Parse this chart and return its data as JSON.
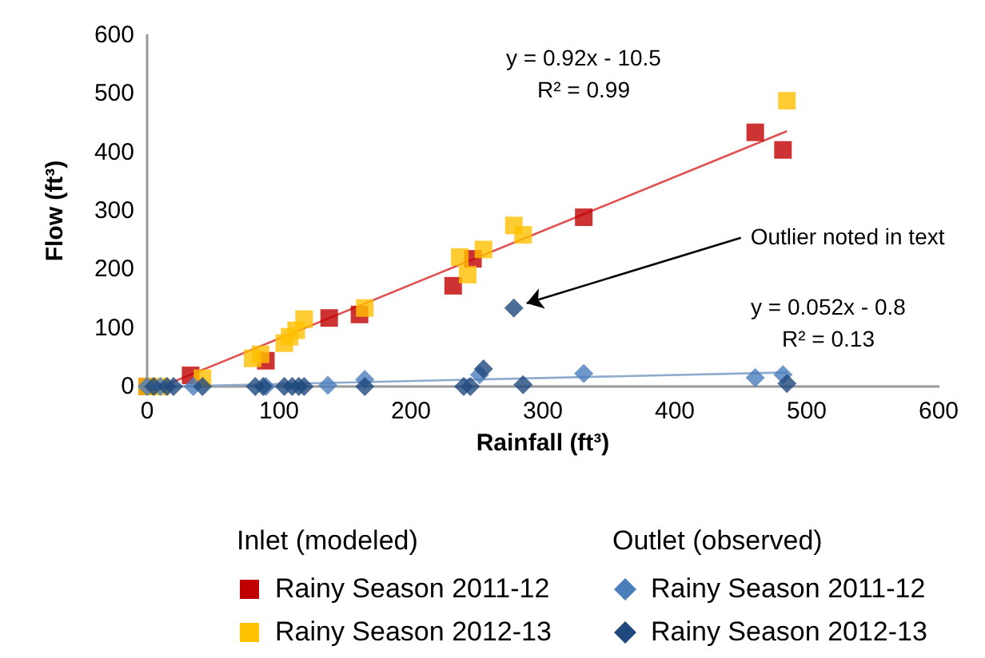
{
  "chart_data": {
    "type": "scatter",
    "xlabel": "Rainfall (ft³)",
    "ylabel": "Flow (ft³)",
    "xlim": [
      0,
      600
    ],
    "ylim": [
      0,
      600
    ],
    "xticks": [
      0,
      100,
      200,
      300,
      400,
      500,
      600
    ],
    "yticks": [
      0,
      100,
      200,
      300,
      400,
      500,
      600
    ],
    "grid": false,
    "legend": "bottom",
    "series": [
      {
        "name": "Rainy Season 2011-12",
        "color": "#c00000",
        "marker": "square",
        "x": [
          0,
          12,
          33,
          90,
          138,
          161,
          232,
          247,
          331,
          461,
          482
        ],
        "values": [
          0,
          null,
          19,
          44,
          117,
          123,
          172,
          218,
          289,
          434,
          404
        ]
      },
      {
        "name": "Rainy Season 2012-13",
        "color": "#ffc000",
        "marker": "square",
        "x": [
          0,
          10,
          42,
          80,
          86,
          104,
          108,
          113,
          119,
          165,
          237,
          243,
          255,
          278,
          285,
          485
        ],
        "values": [
          0,
          0,
          14,
          48,
          55,
          74,
          85,
          96,
          115,
          134,
          221,
          191,
          234,
          275,
          259,
          488
        ]
      },
      {
        "name": "Rainy Season 2011-12",
        "color": "#4a7ebb",
        "marker": "diamond",
        "x": [
          0,
          10,
          35,
          90,
          137,
          165,
          237,
          245,
          252,
          331,
          461,
          482
        ],
        "values": [
          0,
          0,
          0,
          0,
          2,
          12,
          null,
          null,
          20,
          22,
          15,
          20
        ]
      },
      {
        "name": "Rainy Season 2012-13",
        "color": "#1f497d",
        "marker": "diamond",
        "x": [
          5,
          15,
          20,
          42,
          82,
          88,
          104,
          110,
          115,
          119,
          165,
          240,
          245,
          255,
          278,
          285,
          485
        ],
        "values": [
          0,
          0,
          0,
          0,
          0,
          0,
          0,
          0,
          0,
          0,
          0,
          0,
          0,
          30,
          134,
          3,
          5
        ]
      },
      {
        "type": "line",
        "color": "#e05050",
        "marker": "none",
        "x": [
          11,
          485
        ],
        "values": [
          0,
          436
        ]
      },
      {
        "type": "line",
        "color": "#8eaacc",
        "marker": "none",
        "x": [
          16,
          485
        ],
        "values": [
          0,
          24
        ]
      }
    ],
    "annotations": [
      "y = 0.92x - 10.5\nR² = 0.99",
      "y = 0.052x - 0.8\nR² = 0.13",
      {
        "text": "Outlier noted in text",
        "x": 278,
        "y": 134
      },
      "Inlet (modeled)",
      "Outlet (observed)"
    ]
  }
}
